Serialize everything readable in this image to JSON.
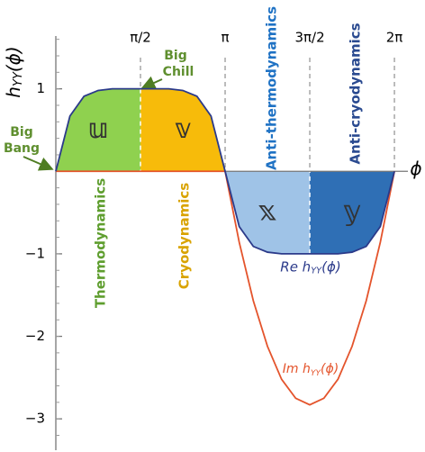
{
  "chart_data": {
    "type": "line",
    "y_label": {
      "base": "h",
      "sub": "YY",
      "arg": "(ϕ)"
    },
    "x_label": "ϕ",
    "x": [
      0,
      0.2618,
      0.5236,
      0.7854,
      1.0472,
      1.309,
      1.5708,
      1.8326,
      2.0944,
      2.3562,
      2.618,
      2.8798,
      3.1416,
      3.4034,
      3.6652,
      3.927,
      4.1888,
      4.4506,
      4.7124,
      4.9742,
      5.236,
      5.4978,
      5.7596,
      6.0214,
      6.2832
    ],
    "series": [
      {
        "name": {
          "base": "Re h",
          "sub": "YY",
          "arg": "(ϕ)"
        },
        "color": "#2b3a8a",
        "label_color": "#2b3a8a",
        "values": [
          0,
          0.67,
          0.91,
          0.98,
          1,
          1,
          1,
          1,
          1,
          0.98,
          0.91,
          0.67,
          0,
          -0.67,
          -0.91,
          -0.98,
          -1,
          -1,
          -1,
          -1,
          -1,
          -0.98,
          -0.91,
          -0.67,
          0
        ]
      },
      {
        "name": {
          "base": "Im h",
          "sub": "YY",
          "arg": "(ϕ)"
        },
        "color": "#e4542c",
        "label_color": "#e4542c",
        "values": [
          0,
          0,
          0,
          0,
          0,
          0,
          0,
          0,
          0,
          0,
          0,
          0,
          0,
          -0.86,
          -1.57,
          -2.12,
          -2.52,
          -2.75,
          -2.83,
          -2.75,
          -2.52,
          -2.12,
          -1.57,
          -0.86,
          0
        ]
      }
    ],
    "xlim": [
      0,
      6.6
    ],
    "ylim": [
      -3.38,
      1.64
    ],
    "xticks": [
      {
        "value": 1.5708,
        "label": "π/2"
      },
      {
        "value": 3.1416,
        "label": "π"
      },
      {
        "value": 4.7124,
        "label": "3π/2"
      },
      {
        "value": 6.2832,
        "label": "2π"
      }
    ],
    "yticks": [
      1,
      {
        "value": -1,
        "label": "−1"
      },
      {
        "value": -2,
        "label": "−2"
      },
      {
        "value": -3,
        "label": "−3"
      }
    ],
    "regions": [
      {
        "label": "𝕦",
        "from": 0,
        "to": 1.5708,
        "color": "#8fd14f"
      },
      {
        "label": "𝕧",
        "from": 1.5708,
        "to": 3.1416,
        "color": "#f7bb0a"
      },
      {
        "label": "𝕩",
        "from": 3.1416,
        "to": 4.7124,
        "color": "#9fc3e7"
      },
      {
        "label": "𝕪",
        "from": 4.7124,
        "to": 6.2832,
        "color": "#2f6fb5"
      }
    ],
    "annotations": [
      {
        "text": "Thermodynamics",
        "color": "#5f9e2f"
      },
      {
        "text": "Cryodynamics",
        "color": "#d9a300"
      },
      {
        "text": "Anti-thermodynamics",
        "color": "#1f72c4"
      },
      {
        "text": "Anti-cryodynamics",
        "color": "#2a4a90"
      },
      {
        "text": "Big",
        "color": "#5f8f2f"
      },
      {
        "text": "Bang",
        "color": "#5f8f2f"
      },
      {
        "text": "Big",
        "color": "#5f8f2f"
      },
      {
        "text": "Chill",
        "color": "#5f8f2f"
      }
    ]
  }
}
